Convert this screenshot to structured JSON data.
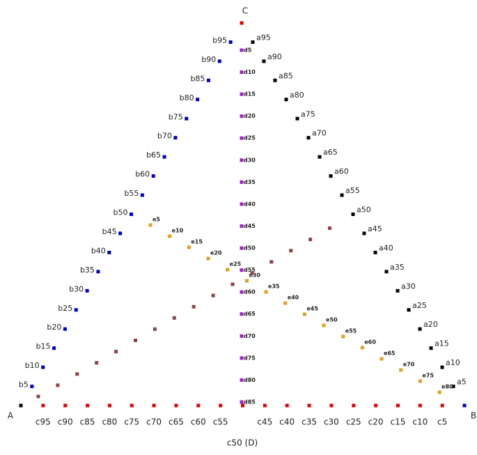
{
  "corners": {
    "a": "A",
    "b": "B",
    "c": "C"
  },
  "a_labels": [
    "a5",
    "a10",
    "a15",
    "a20",
    "a25",
    "a30",
    "a35",
    "a40",
    "a45",
    "a50",
    "a55",
    "a60",
    "a65",
    "a70",
    "a75",
    "a80",
    "a85",
    "a90",
    "a95"
  ],
  "b_labels": [
    "b5",
    "b10",
    "b15",
    "b20",
    "b25",
    "b30",
    "b35",
    "b40",
    "b45",
    "b50",
    "b55",
    "b60",
    "b65",
    "b70",
    "b75",
    "b80",
    "b85",
    "b90",
    "b95"
  ],
  "c_labels": [
    "c5",
    "c10",
    "c15",
    "c20",
    "c25",
    "c30",
    "c35",
    "c40",
    "c45",
    "c55",
    "c60",
    "c65",
    "c70",
    "c75",
    "c80",
    "c85",
    "c90",
    "c95"
  ],
  "c_middle_label": "c50 (D)",
  "d_labels": [
    "d5",
    "d10",
    "d15",
    "d20",
    "d25",
    "d30",
    "d35",
    "d40",
    "d45",
    "d50",
    "d55",
    "d60",
    "d65",
    "d70",
    "d75",
    "d80",
    "d85"
  ],
  "e_labels": [
    "e5",
    "e10",
    "e15",
    "e20",
    "e25",
    "e30",
    "e35",
    "e40",
    "e45",
    "e50",
    "e55",
    "e60",
    "e65",
    "e70",
    "e75",
    "e80"
  ]
}
